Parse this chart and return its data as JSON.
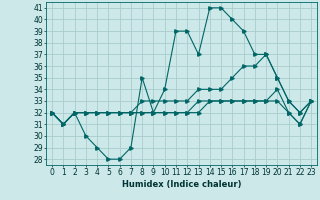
{
  "xlabel": "Humidex (Indice chaleur)",
  "ylabel": "",
  "bg_color": "#cce8e8",
  "grid_color": "#aacccc",
  "line_color": "#006666",
  "xlim": [
    -0.5,
    23.5
  ],
  "ylim": [
    27.5,
    41.5
  ],
  "yticks": [
    28,
    29,
    30,
    31,
    32,
    33,
    34,
    35,
    36,
    37,
    38,
    39,
    40,
    41
  ],
  "xticks": [
    0,
    1,
    2,
    3,
    4,
    5,
    6,
    7,
    8,
    9,
    10,
    11,
    12,
    13,
    14,
    15,
    16,
    17,
    18,
    19,
    20,
    21,
    22,
    23
  ],
  "lines": [
    {
      "x": [
        0,
        1,
        2,
        3,
        4,
        5,
        6,
        7,
        8,
        9,
        10,
        11,
        12,
        13,
        14,
        15,
        16,
        17,
        18,
        19,
        20,
        21,
        22,
        23
      ],
      "y": [
        32,
        31,
        32,
        30,
        29,
        28,
        28,
        29,
        35,
        32,
        34,
        39,
        39,
        37,
        41,
        41,
        40,
        39,
        37,
        37,
        35,
        33,
        32,
        33
      ]
    },
    {
      "x": [
        0,
        1,
        2,
        3,
        4,
        5,
        6,
        7,
        8,
        9,
        10,
        11,
        12,
        13,
        14,
        15,
        16,
        17,
        18,
        19,
        20,
        21,
        22,
        23
      ],
      "y": [
        32,
        31,
        32,
        32,
        32,
        32,
        32,
        32,
        33,
        33,
        33,
        33,
        33,
        34,
        34,
        34,
        35,
        36,
        36,
        37,
        35,
        33,
        32,
        33
      ]
    },
    {
      "x": [
        0,
        1,
        2,
        3,
        4,
        5,
        6,
        7,
        8,
        9,
        10,
        11,
        12,
        13,
        14,
        15,
        16,
        17,
        18,
        19,
        20,
        21,
        22,
        23
      ],
      "y": [
        32,
        31,
        32,
        32,
        32,
        32,
        32,
        32,
        32,
        32,
        32,
        32,
        32,
        33,
        33,
        33,
        33,
        33,
        33,
        33,
        34,
        32,
        31,
        33
      ]
    },
    {
      "x": [
        0,
        1,
        2,
        3,
        4,
        5,
        6,
        7,
        8,
        9,
        10,
        11,
        12,
        13,
        14,
        15,
        16,
        17,
        18,
        19,
        20,
        21,
        22,
        23
      ],
      "y": [
        32,
        31,
        32,
        32,
        32,
        32,
        32,
        32,
        32,
        32,
        32,
        32,
        32,
        32,
        33,
        33,
        33,
        33,
        33,
        33,
        33,
        32,
        31,
        33
      ]
    }
  ]
}
